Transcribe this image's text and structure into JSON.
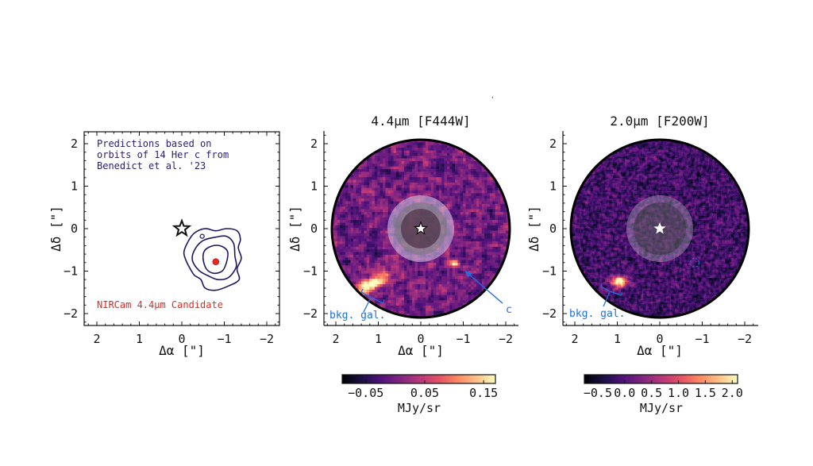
{
  "chart_data": [
    {
      "type": "scatter",
      "panel": "orbit-predictions",
      "title": "",
      "xlabel": "Δα [\"]",
      "ylabel": "Δδ [\"]",
      "xlim": [
        2.3,
        -2.3
      ],
      "ylim": [
        -2.3,
        2.3
      ],
      "x_ticks": [
        2,
        1,
        0,
        -1,
        -2
      ],
      "x_tick_labels": [
        "2",
        "1",
        "0",
        "−1",
        "−2"
      ],
      "y_ticks": [
        2,
        1,
        0,
        -1,
        -2
      ],
      "y_tick_labels": [
        "2",
        "1",
        "0",
        "−1",
        "−2"
      ],
      "annotation_lines": [
        "Predictions based on",
        "orbits of 14 Her c from",
        "Benedict et al. '23"
      ],
      "candidate_label": "NIRCam 4.4μm Candidate",
      "star": {
        "x": 0,
        "y": 0
      },
      "candidate": {
        "x": -0.8,
        "y": -0.78,
        "color": "#e8281e"
      },
      "small_marker": {
        "x": -0.48,
        "y": -0.18
      },
      "contours": [
        {
          "level": "outer",
          "points": [
            [
              -0.2,
              -0.95
            ],
            [
              -0.1,
              -0.75
            ],
            [
              -0.05,
              -0.55
            ],
            [
              -0.15,
              -0.3
            ],
            [
              -0.3,
              -0.1
            ],
            [
              -0.55,
              0.0
            ],
            [
              -0.8,
              -0.05
            ],
            [
              -1.05,
              0.0
            ],
            [
              -1.3,
              -0.05
            ],
            [
              -1.38,
              -0.25
            ],
            [
              -1.33,
              -0.45
            ],
            [
              -1.4,
              -0.7
            ],
            [
              -1.3,
              -0.95
            ],
            [
              -1.35,
              -1.2
            ],
            [
              -1.1,
              -1.35
            ],
            [
              -0.8,
              -1.45
            ],
            [
              -0.55,
              -1.4
            ],
            [
              -0.45,
              -1.2
            ],
            [
              -0.3,
              -1.1
            ]
          ]
        },
        {
          "level": "middle",
          "points": [
            [
              -0.25,
              -0.75
            ],
            [
              -0.3,
              -0.5
            ],
            [
              -0.5,
              -0.28
            ],
            [
              -0.8,
              -0.2
            ],
            [
              -1.05,
              -0.18
            ],
            [
              -1.22,
              -0.35
            ],
            [
              -1.25,
              -0.65
            ],
            [
              -1.28,
              -0.9
            ],
            [
              -1.1,
              -1.15
            ],
            [
              -0.85,
              -1.2
            ],
            [
              -0.6,
              -1.1
            ],
            [
              -0.4,
              -0.98
            ]
          ]
        },
        {
          "level": "inner",
          "points": [
            [
              -0.5,
              -0.7
            ],
            [
              -0.55,
              -0.5
            ],
            [
              -0.75,
              -0.4
            ],
            [
              -0.95,
              -0.42
            ],
            [
              -1.08,
              -0.55
            ],
            [
              -1.05,
              -0.8
            ],
            [
              -0.95,
              -1.0
            ],
            [
              -0.75,
              -1.05
            ],
            [
              -0.58,
              -0.95
            ]
          ]
        }
      ],
      "colors": {
        "contour": "#1e1660",
        "text": "#2a1d6e"
      }
    },
    {
      "type": "heatmap",
      "panel": "f444w",
      "title": "4.4μm [F444W]",
      "xlabel": "Δα [\"]",
      "ylabel": "Δδ [\"]",
      "xlim": [
        2.3,
        -2.3
      ],
      "ylim": [
        -2.3,
        2.3
      ],
      "x_tick_labels": [
        "2",
        "1",
        "0",
        "−1",
        "−2"
      ],
      "y_tick_labels": [
        "2",
        "1",
        "0",
        "−1",
        "−2"
      ],
      "field_radius_arcsec": 2.1,
      "mask_radii_arcsec": [
        0.78,
        0.62,
        0.48
      ],
      "colorbar": {
        "label": "MJy/sr",
        "range": [
          -0.09,
          0.17
        ],
        "ticks": [
          -0.05,
          0.05,
          0.15
        ],
        "tick_labels": [
          "−0.05",
          "0.05",
          "0.15"
        ]
      },
      "sources": [
        {
          "name": "bkg. gal.",
          "x": 1.15,
          "y": -1.3,
          "peak": 1.0
        },
        {
          "name": "c",
          "x": -0.8,
          "y": -0.83,
          "peak": 0.95
        }
      ],
      "annotations": {
        "bkg_label": "bkg. gal.",
        "c_label": "c"
      },
      "pixel_size_arcsec": 0.063
    },
    {
      "type": "heatmap",
      "panel": "f200w",
      "title": "2.0μm [F200W]",
      "xlabel": "Δα [\"]",
      "ylabel": "Δδ [\"]",
      "xlim": [
        2.3,
        -2.3
      ],
      "ylim": [
        -2.3,
        2.3
      ],
      "x_tick_labels": [
        "2",
        "1",
        "0",
        "−1",
        "−2"
      ],
      "y_tick_labels": [
        "2",
        "1",
        "0",
        "−1",
        "−2"
      ],
      "field_radius_arcsec": 2.1,
      "mask_radii_arcsec": [
        0.8,
        0.62
      ],
      "colorbar": {
        "label": "MJy/sr",
        "range": [
          -0.75,
          2.1
        ],
        "ticks": [
          -0.5,
          0.0,
          0.5,
          1.0,
          1.5,
          2.0
        ],
        "tick_labels": [
          "−0.5",
          "0.0",
          "0.5",
          "1.0",
          "1.5",
          "2.0"
        ]
      },
      "sources": [
        {
          "name": "bkg. gal.",
          "x": 0.95,
          "y": -1.25,
          "peak": 1.0
        }
      ],
      "dashed_circle": {
        "x": -0.82,
        "y": -0.8
      },
      "annotations": {
        "bkg_label": "bkg. gal."
      },
      "pixel_size_arcsec": 0.031
    }
  ],
  "colors": {
    "annotation_blue": "#1f6fe0",
    "candidate_red": "#e8281e",
    "axis": "#111111"
  }
}
